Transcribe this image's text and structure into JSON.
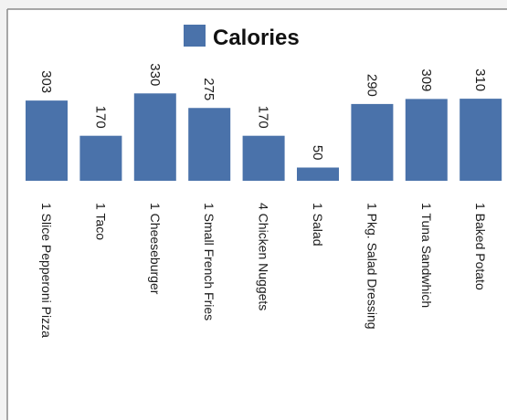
{
  "chart_data": {
    "type": "bar",
    "categories": [
      "1 Slice Pepperoni Pizza",
      "1 Taco",
      "1 Cheeseburger",
      "1 Small French Fries",
      "4 Chicken Nuggets",
      "1 Salad",
      "1 Pkg. Salad Dressing",
      "1 Tuna Sandwhich",
      "1 Baked Potato"
    ],
    "series": [
      {
        "name": "Calories",
        "values": [
          303,
          170,
          330,
          275,
          170,
          50,
          290,
          309,
          310
        ],
        "color": "#4a72aa"
      }
    ],
    "legend": {
      "position": "top",
      "label": "Calories"
    },
    "grid": false,
    "ylim": [
      0,
      330
    ]
  }
}
